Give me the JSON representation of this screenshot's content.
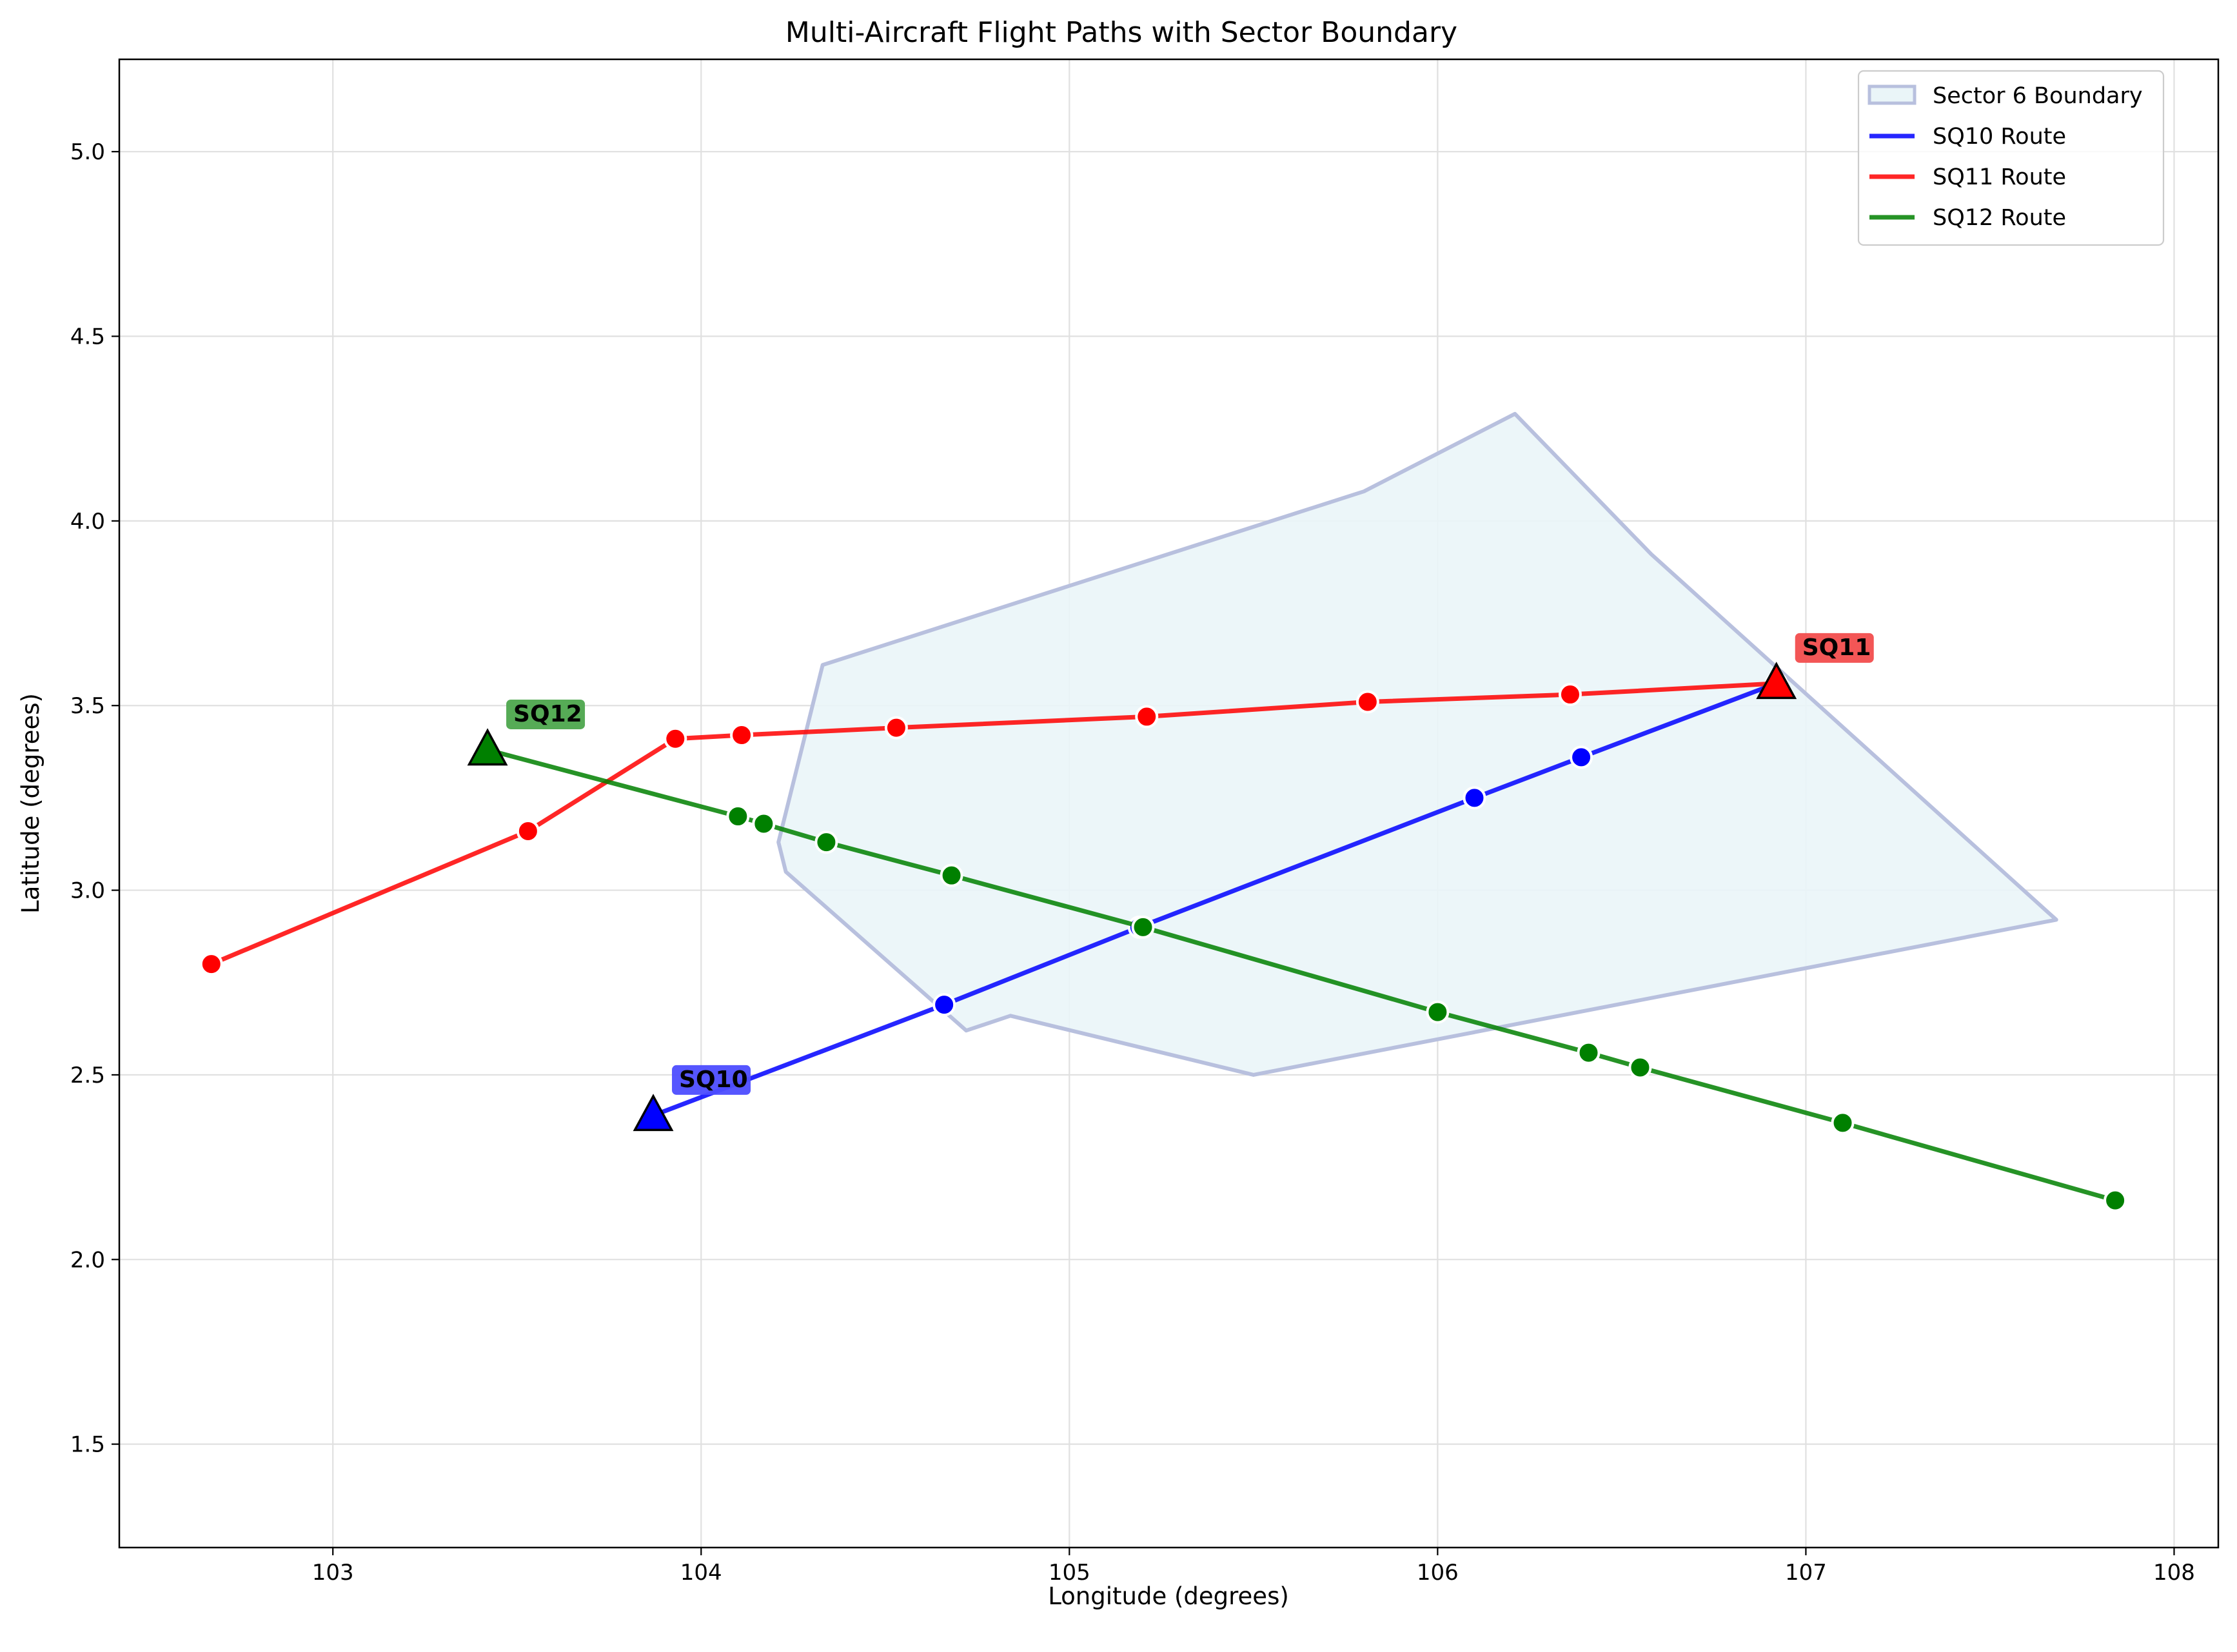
{
  "chart_data": {
    "type": "line",
    "title": "Multi-Aircraft Flight Paths with Sector Boundary",
    "xlabel": "Longitude (degrees)",
    "ylabel": "Latitude (degrees)",
    "xlim": [
      102.42,
      108.12
    ],
    "ylim": [
      1.22,
      5.25
    ],
    "xticks": [
      103,
      104,
      105,
      106,
      107,
      108
    ],
    "yticks": [
      1.5,
      2.0,
      2.5,
      3.0,
      3.5,
      4.0,
      4.5,
      5.0
    ],
    "grid": true,
    "legend_position": "top-right",
    "sector": {
      "name": "Sector 6 Boundary",
      "fill": "#eaf5f8",
      "stroke": "#b8c0de",
      "polygon": [
        [
          104.33,
          3.61
        ],
        [
          105.8,
          4.08
        ],
        [
          106.21,
          4.29
        ],
        [
          106.58,
          3.91
        ],
        [
          107.68,
          2.92
        ],
        [
          105.5,
          2.5
        ],
        [
          104.84,
          2.66
        ],
        [
          104.72,
          2.62
        ],
        [
          104.23,
          3.05
        ],
        [
          104.21,
          3.13
        ],
        [
          104.33,
          3.61
        ]
      ]
    },
    "series": [
      {
        "name": "SQ10 Route",
        "label": "SQ10",
        "color": "#0000ff",
        "label_bg": "#4d4dff",
        "start": [
          103.87,
          2.39
        ],
        "points": [
          [
            103.87,
            2.39
          ],
          [
            104.66,
            2.69
          ],
          [
            105.19,
            2.9
          ],
          [
            106.1,
            3.25
          ],
          [
            106.39,
            3.36
          ],
          [
            106.92,
            3.56
          ]
        ]
      },
      {
        "name": "SQ11 Route",
        "label": "SQ11",
        "color": "#ff0000",
        "label_bg": "#f24d4d",
        "start": [
          106.92,
          3.56
        ],
        "points": [
          [
            106.92,
            3.56
          ],
          [
            106.36,
            3.53
          ],
          [
            105.81,
            3.51
          ],
          [
            105.21,
            3.47
          ],
          [
            104.53,
            3.44
          ],
          [
            104.11,
            3.42
          ],
          [
            103.93,
            3.41
          ],
          [
            103.53,
            3.16
          ],
          [
            102.67,
            2.8
          ]
        ]
      },
      {
        "name": "SQ12 Route",
        "label": "SQ12",
        "color": "#008000",
        "label_bg": "#4da64d",
        "start": [
          103.42,
          3.38
        ],
        "points": [
          [
            103.42,
            3.38
          ],
          [
            104.1,
            3.2
          ],
          [
            104.17,
            3.18
          ],
          [
            104.34,
            3.13
          ],
          [
            104.68,
            3.04
          ],
          [
            105.2,
            2.9
          ],
          [
            106.0,
            2.67
          ],
          [
            106.41,
            2.56
          ],
          [
            106.55,
            2.52
          ],
          [
            107.1,
            2.37
          ],
          [
            107.84,
            2.16
          ]
        ]
      }
    ]
  }
}
